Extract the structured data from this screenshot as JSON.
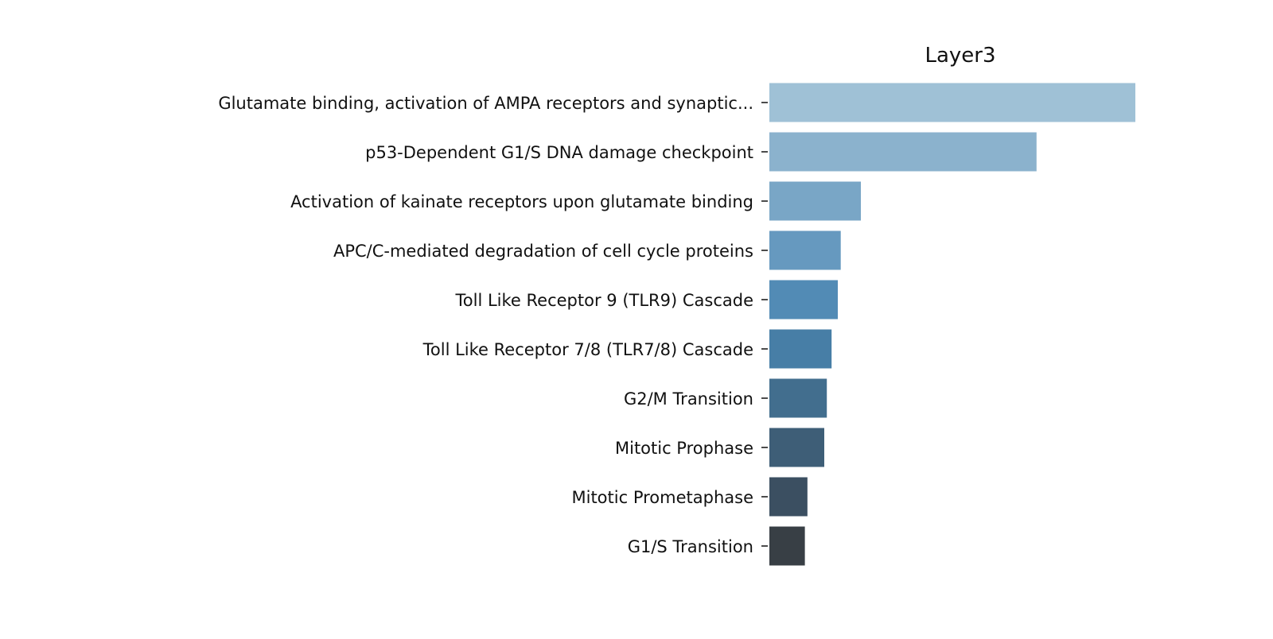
{
  "chart_data": {
    "type": "bar",
    "orientation": "horizontal",
    "title": "Layer3",
    "xlabel": "",
    "ylabel": "",
    "grid": false,
    "xlim": [
      0,
      1.0
    ],
    "categories": [
      "Glutamate binding, activation of AMPA receptors and synaptic...",
      "p53-Dependent G1/S DNA damage checkpoint",
      "Activation of kainate receptors upon glutamate binding",
      "APC/C-mediated degradation of cell cycle proteins",
      "Toll Like Receptor 9 (TLR9) Cascade",
      "Toll Like Receptor 7/8 (TLR7/8) Cascade",
      "G2/M Transition",
      "Mitotic Prophase",
      "Mitotic Prometaphase",
      "G1/S Transition"
    ],
    "values": [
      1.0,
      0.73,
      0.25,
      0.195,
      0.187,
      0.17,
      0.157,
      0.15,
      0.104,
      0.097
    ],
    "colors": [
      "#9fc1d6",
      "#8bb2cd",
      "#79a6c6",
      "#6699bf",
      "#528bb5",
      "#477ea6",
      "#426e8e",
      "#3e5e77",
      "#3b4f61",
      "#383f45"
    ]
  }
}
